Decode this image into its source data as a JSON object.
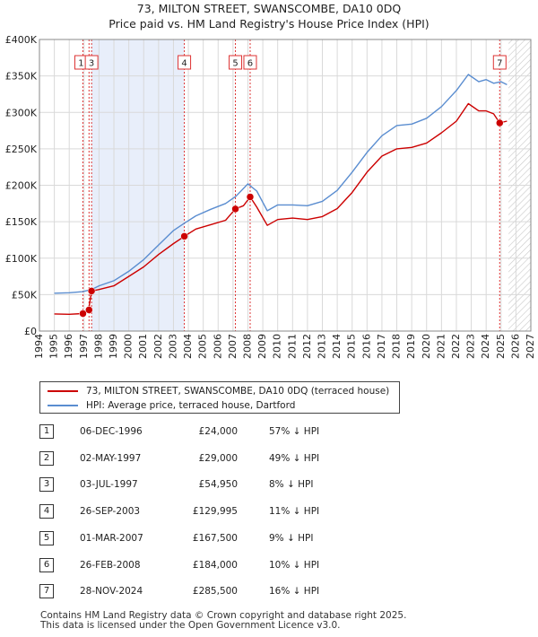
{
  "chart_data": {
    "type": "line",
    "title": "73, MILTON STREET, SWANSCOMBE, DA10 0DQ",
    "subtitle": "Price paid vs. HM Land Registry's House Price Index (HPI)",
    "xlim": [
      1994,
      2027
    ],
    "ylim": [
      0,
      400000
    ],
    "x_ticks": [
      1994,
      1995,
      1996,
      1997,
      1998,
      1999,
      2000,
      2001,
      2002,
      2003,
      2004,
      2005,
      2006,
      2007,
      2008,
      2009,
      2010,
      2011,
      2012,
      2013,
      2014,
      2015,
      2016,
      2017,
      2018,
      2019,
      2020,
      2021,
      2022,
      2023,
      2024,
      2025,
      2026,
      2027
    ],
    "y_ticks": [
      {
        "value": 0,
        "label": "£0"
      },
      {
        "value": 50000,
        "label": "£50K"
      },
      {
        "value": 100000,
        "label": "£100K"
      },
      {
        "value": 150000,
        "label": "£150K"
      },
      {
        "value": 200000,
        "label": "£200K"
      },
      {
        "value": 250000,
        "label": "£250K"
      },
      {
        "value": 300000,
        "label": "£300K"
      },
      {
        "value": 350000,
        "label": "£350K"
      },
      {
        "value": 400000,
        "label": "£400K"
      }
    ],
    "shaded_range": [
      1997.5,
      2003.73
    ],
    "hatched_range": [
      2025.5,
      2027
    ],
    "series": [
      {
        "name": "73, MILTON STREET, SWANSCOMBE, DA10 0DQ (terraced house)",
        "color": "#cc0000",
        "points": [
          [
            1995.0,
            23500
          ],
          [
            1996.0,
            23000
          ],
          [
            1996.9,
            24000
          ],
          [
            1997.3,
            29000
          ],
          [
            1997.5,
            54950
          ],
          [
            1998.0,
            57000
          ],
          [
            1999.0,
            62000
          ],
          [
            2000.0,
            75000
          ],
          [
            2001.0,
            88000
          ],
          [
            2002.0,
            105000
          ],
          [
            2003.0,
            120000
          ],
          [
            2003.73,
            129995
          ],
          [
            2004.5,
            140000
          ],
          [
            2005.5,
            146000
          ],
          [
            2006.5,
            152000
          ],
          [
            2007.16,
            167500
          ],
          [
            2007.7,
            172000
          ],
          [
            2008.15,
            184000
          ],
          [
            2008.6,
            170000
          ],
          [
            2009.3,
            145000
          ],
          [
            2010.0,
            153000
          ],
          [
            2011.0,
            155000
          ],
          [
            2012.0,
            153000
          ],
          [
            2013.0,
            157000
          ],
          [
            2014.0,
            168000
          ],
          [
            2015.0,
            190000
          ],
          [
            2016.0,
            218000
          ],
          [
            2017.0,
            240000
          ],
          [
            2018.0,
            250000
          ],
          [
            2019.0,
            252000
          ],
          [
            2020.0,
            258000
          ],
          [
            2021.0,
            272000
          ],
          [
            2022.0,
            288000
          ],
          [
            2022.8,
            312000
          ],
          [
            2023.5,
            302000
          ],
          [
            2024.0,
            302000
          ],
          [
            2024.5,
            298000
          ],
          [
            2024.91,
            285500
          ],
          [
            2025.4,
            288000
          ]
        ]
      },
      {
        "name": "HPI: Average price, terraced house, Dartford",
        "color": "#5a8dd0",
        "points": [
          [
            1995.0,
            52000
          ],
          [
            1996.0,
            52500
          ],
          [
            1996.9,
            54000
          ],
          [
            1997.5,
            57000
          ],
          [
            1998.0,
            62000
          ],
          [
            1999.0,
            69000
          ],
          [
            2000.0,
            82000
          ],
          [
            2001.0,
            98000
          ],
          [
            2002.0,
            118000
          ],
          [
            2003.0,
            138000
          ],
          [
            2003.73,
            148000
          ],
          [
            2004.5,
            158000
          ],
          [
            2005.5,
            167000
          ],
          [
            2006.5,
            175000
          ],
          [
            2007.2,
            185000
          ],
          [
            2008.0,
            202000
          ],
          [
            2008.6,
            192000
          ],
          [
            2009.3,
            165000
          ],
          [
            2010.0,
            173000
          ],
          [
            2011.0,
            173000
          ],
          [
            2012.0,
            172000
          ],
          [
            2013.0,
            178000
          ],
          [
            2014.0,
            193000
          ],
          [
            2015.0,
            218000
          ],
          [
            2016.0,
            245000
          ],
          [
            2017.0,
            268000
          ],
          [
            2018.0,
            282000
          ],
          [
            2019.0,
            284000
          ],
          [
            2020.0,
            292000
          ],
          [
            2021.0,
            308000
          ],
          [
            2022.0,
            330000
          ],
          [
            2022.8,
            352000
          ],
          [
            2023.5,
            342000
          ],
          [
            2024.0,
            345000
          ],
          [
            2024.5,
            340000
          ],
          [
            2025.0,
            342000
          ],
          [
            2025.4,
            338000
          ]
        ]
      }
    ],
    "markers": [
      {
        "label": "1",
        "x": 1996.92,
        "y": 24000,
        "show_label": true
      },
      {
        "label": "2",
        "x": 1997.33,
        "y": 29000,
        "show_label": false
      },
      {
        "label": "3",
        "x": 1997.5,
        "y": 54950,
        "show_label": true
      },
      {
        "label": "4",
        "x": 2003.73,
        "y": 129995,
        "show_label": true
      },
      {
        "label": "5",
        "x": 2007.16,
        "y": 167500,
        "show_label": true
      },
      {
        "label": "6",
        "x": 2008.15,
        "y": 184000,
        "show_label": true
      },
      {
        "label": "7",
        "x": 2024.91,
        "y": 285500,
        "show_label": true
      }
    ]
  },
  "legend": {
    "property_label": "73, MILTON STREET, SWANSCOMBE, DA10 0DQ (terraced house)",
    "hpi_label": "HPI: Average price, terraced house, Dartford",
    "property_color": "#cc0000",
    "hpi_color": "#5a8dd0"
  },
  "transactions": [
    {
      "num": "1",
      "date": "06-DEC-1996",
      "price": "£24,000",
      "hpi": "57% ↓ HPI"
    },
    {
      "num": "2",
      "date": "02-MAY-1997",
      "price": "£29,000",
      "hpi": "49% ↓ HPI"
    },
    {
      "num": "3",
      "date": "03-JUL-1997",
      "price": "£54,950",
      "hpi": "8% ↓ HPI"
    },
    {
      "num": "4",
      "date": "26-SEP-2003",
      "price": "£129,995",
      "hpi": "11% ↓ HPI"
    },
    {
      "num": "5",
      "date": "01-MAR-2007",
      "price": "£167,500",
      "hpi": "9% ↓ HPI"
    },
    {
      "num": "6",
      "date": "26-FEB-2008",
      "price": "£184,000",
      "hpi": "10% ↓ HPI"
    },
    {
      "num": "7",
      "date": "28-NOV-2024",
      "price": "£285,500",
      "hpi": "16% ↓ HPI"
    }
  ],
  "footer": {
    "line1": "Contains HM Land Registry data © Crown copyright and database right 2025.",
    "line2": "This data is licensed under the Open Government Licence v3.0."
  }
}
